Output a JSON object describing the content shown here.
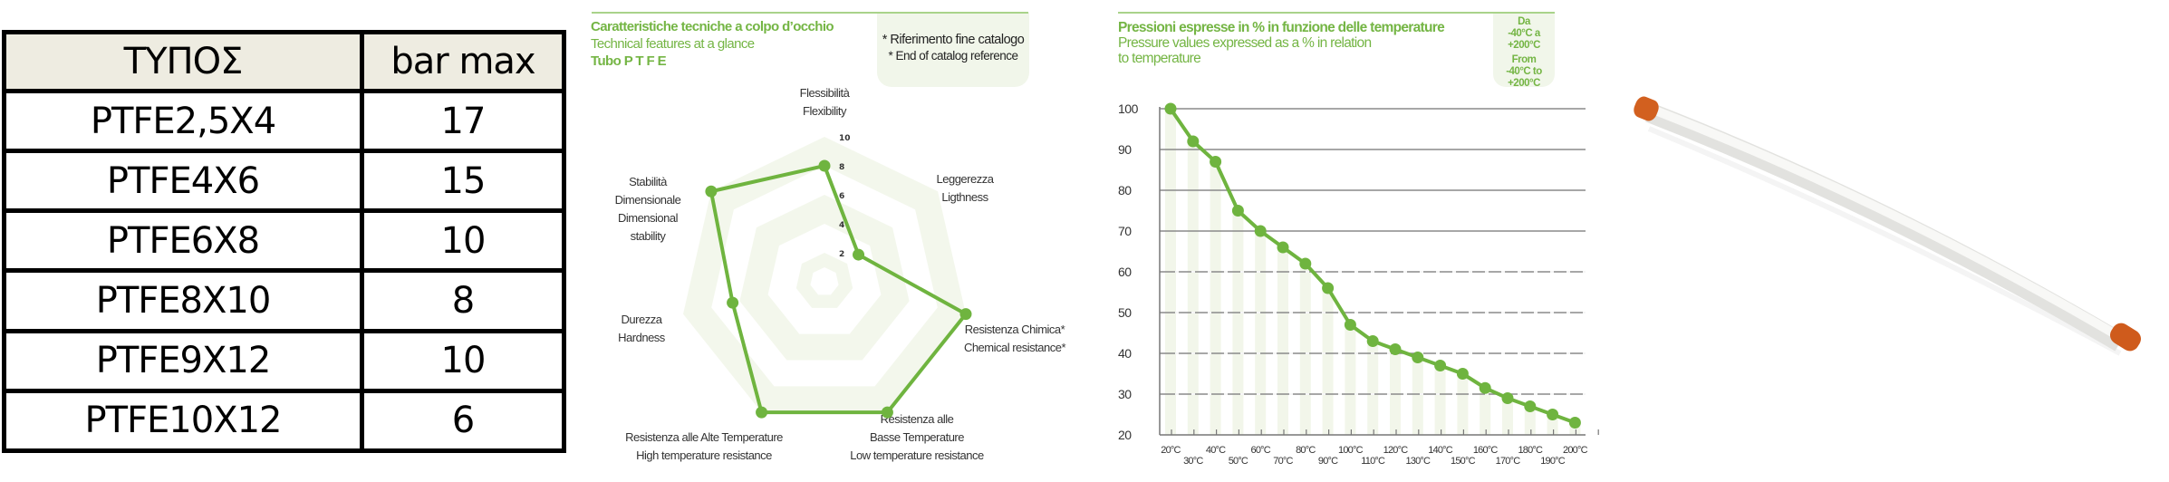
{
  "table": {
    "headers": [
      "ΤΥΠΟΣ",
      "bar max"
    ],
    "rows": [
      {
        "type": "PTFE2,5X4",
        "bar_max": "17"
      },
      {
        "type": "PTFE4X6",
        "bar_max": "15"
      },
      {
        "type": "PTFE6X8",
        "bar_max": "10"
      },
      {
        "type": "PTFE8X10",
        "bar_max": "8"
      },
      {
        "type": "PTFE9X12",
        "bar_max": "10"
      },
      {
        "type": "PTFE10X12",
        "bar_max": "6"
      }
    ]
  },
  "radar_panel": {
    "title_it": "Caratteristiche tecniche a colpo d’occhio",
    "title_en": "Technical features at a glance",
    "product": "Tubo P T F E",
    "note_it": "* Riferimento fine catalogo",
    "note_en": "* End of catalog reference"
  },
  "line_panel": {
    "title_it": "Pressioni espresse in % in funzione delle temperature",
    "title_en_1": "Pressure values expressed as a % in relation",
    "title_en_2": "to temperature",
    "range_it_label": "Da",
    "range_it": "-40°C a +200°C",
    "range_en_label": "From",
    "range_en": "-40°C to +200°C"
  },
  "colors": {
    "accent_green": "#6fb43f",
    "title_green": "#74b544",
    "band_green": "#f2f7ea",
    "cap_orange": "#d2601f"
  },
  "chart_data": [
    {
      "type": "radar",
      "title": "Tubo P T F E",
      "range": [
        0,
        10
      ],
      "ticks": [
        "2",
        "4",
        "6",
        "8",
        "10"
      ],
      "axes": [
        {
          "label_it": "Flessibilità",
          "label_en": "Flexibility",
          "value": 8
        },
        {
          "label_it": "Leggerezza",
          "label_en": "Ligthness",
          "value": 3
        },
        {
          "label_it": "Resistenza Chimica*",
          "label_en": "Chemical resistance*",
          "value": 10
        },
        {
          "label_it": "Resistenza alle Basse Temperature",
          "label_en": "Low temperature resistance",
          "value": 10
        },
        {
          "label_it": "Resistenza alle Alte Temperature",
          "label_en": "High temperature resistance",
          "value": 10
        },
        {
          "label_it": "Durezza",
          "label_en": "Hardness",
          "value": 6.5
        },
        {
          "label_it": "Stabilità Dimensionale",
          "label_en": "Dimensional stability",
          "value": 10
        }
      ]
    },
    {
      "type": "line",
      "title": "Pressioni espresse in % in funzione delle temperature",
      "xlabel": "",
      "ylabel": "",
      "ylim": [
        20,
        100
      ],
      "yticks": [
        "100",
        "90",
        "80",
        "70",
        "60",
        "50",
        "40",
        "30",
        "20"
      ],
      "grid": true,
      "x": [
        "20°C",
        "30°C",
        "40°C",
        "50°C",
        "60°C",
        "70°C",
        "80°C",
        "90°C",
        "100°C",
        "110°C",
        "120°C",
        "130°C",
        "140°C",
        "150°C",
        "160°C",
        "170°C",
        "180°C",
        "190°C",
        "200°C"
      ],
      "series": [
        {
          "name": "Pressure %",
          "values": [
            100,
            92,
            87,
            75,
            70,
            66,
            62,
            56,
            47,
            43,
            41,
            39,
            37,
            35,
            31.5,
            29,
            27,
            25,
            23
          ]
        }
      ]
    }
  ]
}
